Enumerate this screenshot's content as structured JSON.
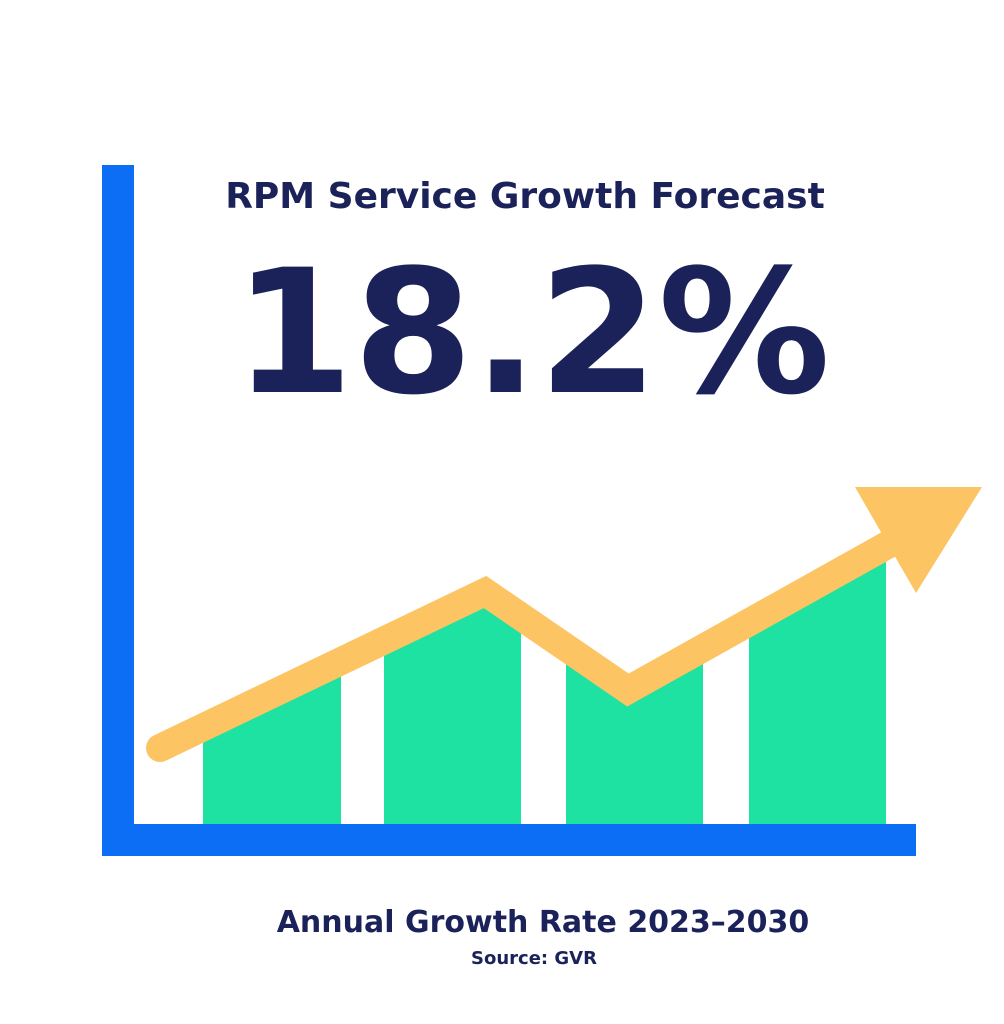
{
  "title": "RPM Service Growth Forecast",
  "stat": "18.2%",
  "caption": "Annual Growth Rate 2023–2030",
  "source": "Source: GVR"
}
